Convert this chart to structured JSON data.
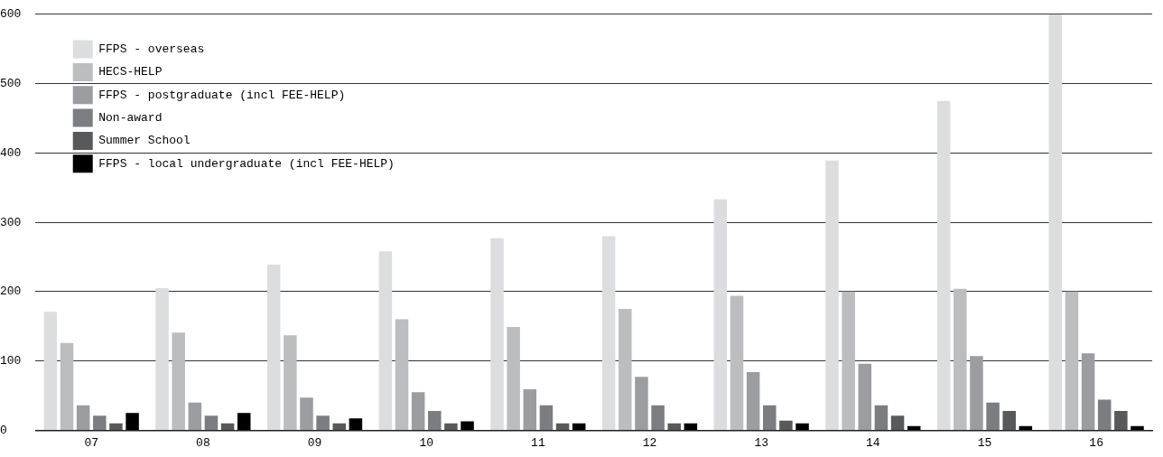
{
  "chart_data": {
    "type": "bar",
    "categories": [
      "07",
      "08",
      "09",
      "10",
      "11",
      "12",
      "13",
      "14",
      "15",
      "16"
    ],
    "series": [
      {
        "name": "FFPS - overseas",
        "color": "#dcdddf",
        "values": [
          171,
          205,
          239,
          258,
          277,
          280,
          333,
          389,
          475,
          600
        ]
      },
      {
        "name": "HECS-HELP",
        "color": "#bcbdbf",
        "values": [
          126,
          141,
          137,
          160,
          149,
          175,
          194,
          200,
          204,
          200
        ]
      },
      {
        "name": "FFPS - postgraduate (incl FEE-HELP)",
        "color": "#9c9da0",
        "values": [
          36,
          40,
          47,
          55,
          59,
          77,
          84,
          96,
          107,
          111
        ]
      },
      {
        "name": "Non-award",
        "color": "#7c7d80",
        "values": [
          21,
          21,
          21,
          28,
          36,
          36,
          36,
          36,
          40,
          44
        ]
      },
      {
        "name": "Summer School",
        "color": "#58595b",
        "values": [
          10,
          10,
          10,
          10,
          10,
          10,
          14,
          21,
          28,
          28
        ]
      },
      {
        "name": "FFPS - local undergraduate (incl FEE-HELP)",
        "color": "#000000",
        "values": [
          25,
          25,
          17,
          13,
          10,
          10,
          10,
          6,
          6,
          6
        ]
      }
    ],
    "ylim": [
      0,
      600
    ],
    "yticks": [
      0,
      100,
      200,
      300,
      400,
      500,
      600
    ],
    "grid": "y",
    "legend": "top left"
  }
}
